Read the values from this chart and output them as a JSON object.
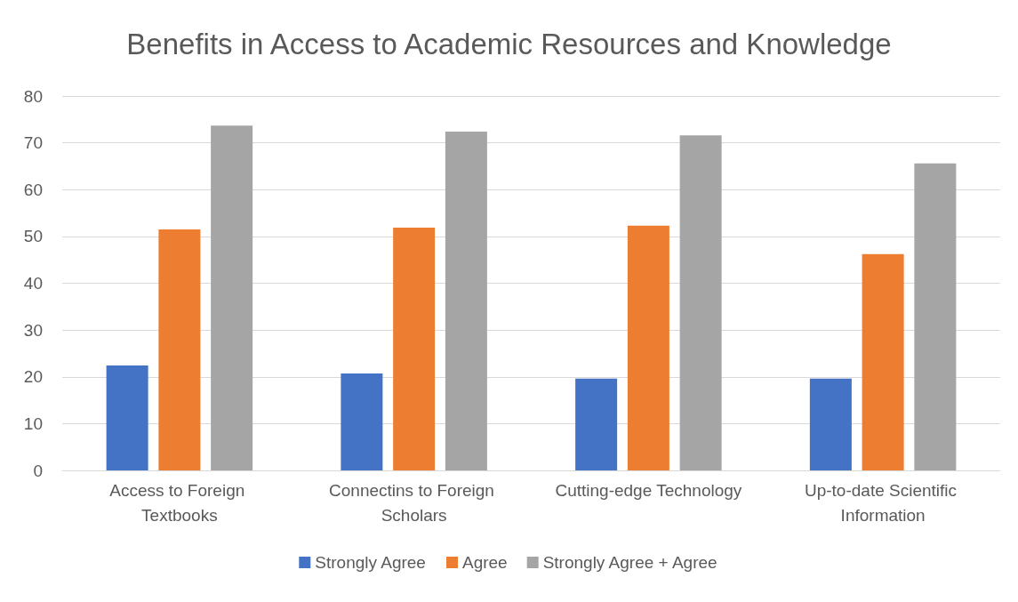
{
  "chart_data": {
    "type": "bar",
    "title": "Benefits in Access to Academic Resources and Knowledge",
    "categories": [
      "Access to Foreign Textbooks",
      "Connectins to Foreign Scholars",
      "Cutting-edge Technology",
      "Up-to-date Scientific Information"
    ],
    "series": [
      {
        "name": "Strongly Agree",
        "color": "#4472c4",
        "values": [
          22.4,
          20.7,
          19.6,
          19.6
        ]
      },
      {
        "name": "Agree",
        "color": "#ed7d31",
        "values": [
          51.5,
          51.9,
          52.3,
          46.2
        ]
      },
      {
        "name": "Strongly Agree + Agree",
        "color": "#a5a5a5",
        "values": [
          73.7,
          72.4,
          71.6,
          65.6
        ]
      }
    ],
    "ylim": [
      0,
      80
    ],
    "yticks": [
      0,
      10,
      20,
      30,
      40,
      50,
      60,
      70,
      80
    ],
    "grid": "y",
    "legend": "bottom"
  }
}
